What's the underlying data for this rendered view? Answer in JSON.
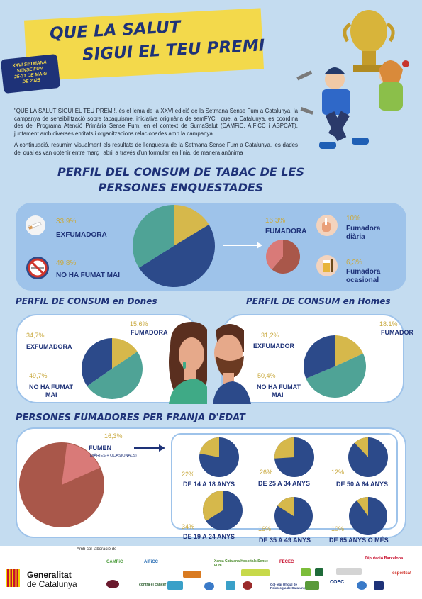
{
  "header": {
    "title_line1": "QUE LA SALUT",
    "title_line2": "SIGUI EL TEU PREMI",
    "badge_line1": "XXVI SETMANA",
    "badge_line2": "SENSE FUM",
    "badge_line3": "25-31 DE MAIG",
    "badge_line4": "DE 2025"
  },
  "intro": {
    "p1": "\"QUE LA SALUT SIGUI EL TEU PREMI!, és el lema de la XXVI edició de la Setmana Sense Fum a Catalunya, la campanya de sensibilització sobre tabaquisme, iniciativa originària de semFYC i que, a Catalunya, es coordina des del Programa Atenció Primària Sense Fum, en el context de SumaSalut (CAMFiC, AIFiCC i ASPCAT), juntament amb diverses entitats i organitzacions relacionades amb la campanya.",
    "p2": "A continuació, resumim visualment els resultats de l'enquesta de la Setmana Sense Fum a Catalunya, les dades del qual es van obtenir entre març i abril a través d'un formulari en línia, de manera anònima"
  },
  "section1": {
    "title_line1": "PERFIL DEL CONSUM DE TABAC DE LES",
    "title_line2": "PERSONES ENQUESTADES",
    "exfumadora_pct": "33,9%",
    "exfumadora_label": "EXFUMADORA",
    "nofumat_pct": "49,8%",
    "nofumat_label": "NO HA FUMAT MAI",
    "fumadora_pct": "16,3%",
    "fumadora_label": "FUMADORA",
    "diaria_pct": "10%",
    "diaria_label1": "Fumadora",
    "diaria_label2": "diària",
    "ocasional_pct": "6,3%",
    "ocasional_label1": "Fumadora",
    "ocasional_label2": "ocasional"
  },
  "women": {
    "title": "PERFIL DE CONSUM en Dones",
    "fumadora_pct": "15,6%",
    "fumadora_label": "FUMADORA",
    "exfumadora_pct": "34,7%",
    "exfumadora_label": "EXFUMADORA",
    "nofumat_pct": "49,7%",
    "nofumat_label1": "NO HA FUMAT",
    "nofumat_label2": "MAI"
  },
  "men": {
    "title": "PERFIL DE CONSUM en Homes",
    "fumador_pct": "18.1%",
    "fumador_label": "FUMADOR",
    "exfumador_pct": "31,2%",
    "exfumador_label": "EXFUMADOR",
    "nofumat_pct": "50,4%",
    "nofumat_label1": "NO HA FUMAT",
    "nofumat_label2": "MAI"
  },
  "age": {
    "title": "PERSONES FUMADORES PER FRANJA D'EDAT",
    "fumen_pct": "16,3%",
    "fumen_label": "FUMEN",
    "fumen_sub": "(DIÀRIES + OCASIONALS)",
    "groups": [
      {
        "pct": "22%",
        "label": "DE 14 A 18 ANYS"
      },
      {
        "pct": "26%",
        "label": "DE 25 A 34 ANYS"
      },
      {
        "pct": "12%",
        "label": "DE 50 A 64 ANYS"
      },
      {
        "pct": "34%",
        "label": "DE 19 A 24 ANYS"
      },
      {
        "pct": "16%",
        "label": "DE 35 A 49 ANYS"
      },
      {
        "pct": "10%",
        "label": "DE 65 ANYS O MÉS"
      }
    ]
  },
  "footer": {
    "collab": "Amb col·laboració de",
    "gen1": "Generalitat",
    "gen2": "de Catalunya",
    "logos": [
      "CAMFiC",
      "AIFiCC",
      "Xarxa Catalana Hospitals Sense Fum",
      "FECEC",
      "COEC",
      "Diputació Barcelona",
      "esportcat",
      "contra el càncer",
      "Col·legi Oficial de Psicologia de Catalunya"
    ]
  },
  "chart_data": [
    {
      "type": "pie",
      "categories": [
        "FUMADORA",
        "EXFUMADORA",
        "NO HA FUMAT MAI"
      ],
      "values": [
        16.3,
        33.9,
        49.8
      ]
    },
    {
      "type": "pie",
      "categories": [
        "Fumadora diària",
        "Fumadora ocasional"
      ],
      "values": [
        10,
        6.3
      ]
    },
    {
      "type": "pie",
      "categories": [
        "FUMADORA",
        "EXFUMADORA",
        "NO HA FUMAT MAI"
      ],
      "values": [
        15.6,
        34.7,
        49.7
      ]
    },
    {
      "type": "pie",
      "categories": [
        "FUMADOR",
        "EXFUMADOR",
        "NO HA FUMAT MAI"
      ],
      "values": [
        18.1,
        31.2,
        50.4
      ]
    },
    {
      "type": "pie",
      "categories": [
        "FUMEN"
      ],
      "values": [
        16.3
      ]
    },
    {
      "type": "pie",
      "categories": [
        "DE 14 A 18 ANYS",
        "DE 19 A 24 ANYS",
        "DE 25 A 34 ANYS",
        "DE 35 A 49 ANYS",
        "DE 50 A 64 ANYS",
        "DE 65 ANYS O MÉS"
      ],
      "values": [
        22,
        34,
        26,
        16,
        12,
        10
      ]
    }
  ],
  "colors": {
    "navy": "#2c4a8a",
    "gold": "#d6b84b",
    "teal": "#4fa396",
    "brown": "#a9574a",
    "pink": "#d97a78"
  }
}
